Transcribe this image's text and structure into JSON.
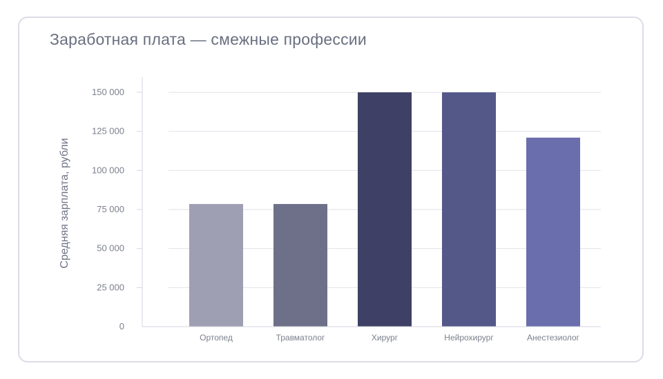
{
  "chart_data": {
    "type": "bar",
    "title": "Заработная плата — смежные профессии",
    "xlabel": "",
    "ylabel": "Средняя зарплата, рубли",
    "categories": [
      "Ортопед",
      "Травматолог",
      "Хирург",
      "Нейрохирург",
      "Анестезиолог"
    ],
    "values": [
      78500,
      78500,
      150000,
      150000,
      121000
    ],
    "colors": [
      "#9e9fb2",
      "#6e6f88",
      "#3e4165",
      "#535888",
      "#6a6ead"
    ],
    "ylim": [
      0,
      150000
    ],
    "yticks": [
      0,
      25000,
      50000,
      75000,
      100000,
      125000,
      150000
    ],
    "ytick_labels": [
      "0",
      "25 000",
      "50 000",
      "75 000",
      "100 000",
      "125 000",
      "150 000"
    ],
    "grid": true,
    "legend": "none"
  }
}
